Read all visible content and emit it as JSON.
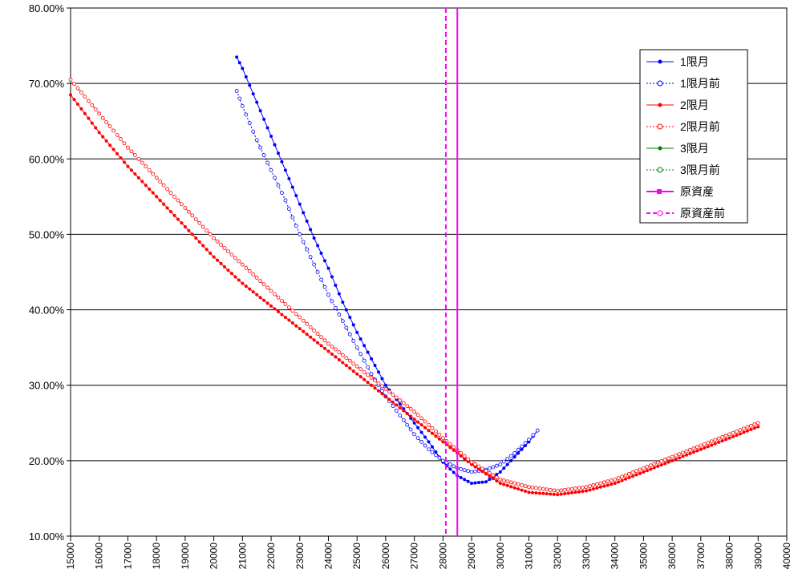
{
  "chart_data": {
    "type": "line",
    "title": "",
    "xlabel": "",
    "ylabel": "",
    "xlim": [
      15000,
      40000
    ],
    "ylim": [
      10,
      80
    ],
    "x_ticks": [
      15000,
      16000,
      17000,
      18000,
      19000,
      20000,
      21000,
      22000,
      23000,
      24000,
      25000,
      26000,
      27000,
      28000,
      29000,
      30000,
      31000,
      32000,
      33000,
      34000,
      35000,
      36000,
      37000,
      38000,
      39000,
      40000
    ],
    "y_ticks": [
      10,
      20,
      30,
      40,
      50,
      60,
      70,
      80
    ],
    "y_tick_labels": [
      "10.00%",
      "20.00%",
      "30.00%",
      "40.00%",
      "50.00%",
      "60.00%",
      "70.00%",
      "80.00%"
    ],
    "grid": "horizontal",
    "legend_position": "top-right",
    "series": [
      {
        "name": "1限月",
        "color": "#0000ff",
        "style": "solid",
        "marker": "filled-diamond",
        "x": [
          20800,
          21000,
          21500,
          22000,
          22500,
          23000,
          23500,
          24000,
          24500,
          25000,
          25500,
          26000,
          26500,
          27000,
          27500,
          28000,
          28500,
          29000,
          29500,
          30000,
          30500,
          31000,
          31300
        ],
        "y": [
          73.5,
          72.0,
          67.5,
          63.0,
          58.5,
          54.0,
          49.5,
          45.5,
          41.0,
          37.0,
          33.5,
          30.0,
          27.5,
          25.0,
          22.5,
          19.8,
          18.0,
          17.0,
          17.2,
          18.5,
          20.5,
          22.5,
          24.0
        ]
      },
      {
        "name": "1限月前",
        "color": "#0000ff",
        "style": "dotted",
        "marker": "open-circle",
        "x": [
          20800,
          21000,
          21500,
          22000,
          22500,
          23000,
          23500,
          24000,
          24500,
          25000,
          25500,
          26000,
          26500,
          27000,
          27500,
          28000,
          28500,
          29000,
          29500,
          30000,
          30500,
          31000,
          31300
        ],
        "y": [
          69.0,
          67.0,
          62.5,
          58.5,
          54.5,
          50.0,
          46.0,
          42.0,
          38.5,
          35.0,
          31.5,
          28.5,
          26.0,
          23.5,
          21.5,
          20.0,
          19.0,
          18.5,
          18.8,
          19.5,
          21.0,
          22.8,
          24.0
        ]
      },
      {
        "name": "2限月",
        "color": "#ff0000",
        "style": "solid",
        "marker": "filled-diamond",
        "x": [
          15000,
          16000,
          17000,
          18000,
          19000,
          20000,
          21000,
          22000,
          23000,
          24000,
          25000,
          26000,
          27000,
          28000,
          29000,
          30000,
          31000,
          32000,
          33000,
          34000,
          35000,
          36000,
          37000,
          38000,
          39000
        ],
        "y": [
          68.5,
          63.5,
          59.0,
          55.0,
          51.0,
          47.0,
          43.5,
          40.5,
          37.5,
          34.5,
          31.5,
          28.5,
          25.5,
          22.5,
          19.5,
          17.0,
          15.8,
          15.5,
          16.0,
          17.0,
          18.5,
          20.0,
          21.5,
          23.0,
          24.5
        ]
      },
      {
        "name": "2限月前",
        "color": "#ff0000",
        "style": "dotted",
        "marker": "open-circle",
        "x": [
          15000,
          16000,
          17000,
          18000,
          19000,
          20000,
          21000,
          22000,
          23000,
          24000,
          25000,
          26000,
          27000,
          28000,
          29000,
          30000,
          31000,
          32000,
          33000,
          34000,
          35000,
          36000,
          37000,
          38000,
          39000
        ],
        "y": [
          70.5,
          66.0,
          61.5,
          57.5,
          53.5,
          49.5,
          46.0,
          42.5,
          39.0,
          35.5,
          32.5,
          29.5,
          26.5,
          23.0,
          19.8,
          17.5,
          16.5,
          16.0,
          16.5,
          17.5,
          19.0,
          20.5,
          22.0,
          23.5,
          25.0
        ]
      },
      {
        "name": "3限月",
        "color": "#008000",
        "style": "solid",
        "marker": "filled-diamond",
        "x": [],
        "y": []
      },
      {
        "name": "3限月前",
        "color": "#008000",
        "style": "dotted",
        "marker": "open-circle",
        "x": [],
        "y": []
      },
      {
        "name": "原資産",
        "color": "#ff00ff",
        "style": "solid",
        "marker": "filled-square",
        "vline_x": 28500
      },
      {
        "name": "原資産前",
        "color": "#ff00ff",
        "style": "dashed",
        "marker": "open-circle",
        "vline_x": 28100
      }
    ]
  }
}
